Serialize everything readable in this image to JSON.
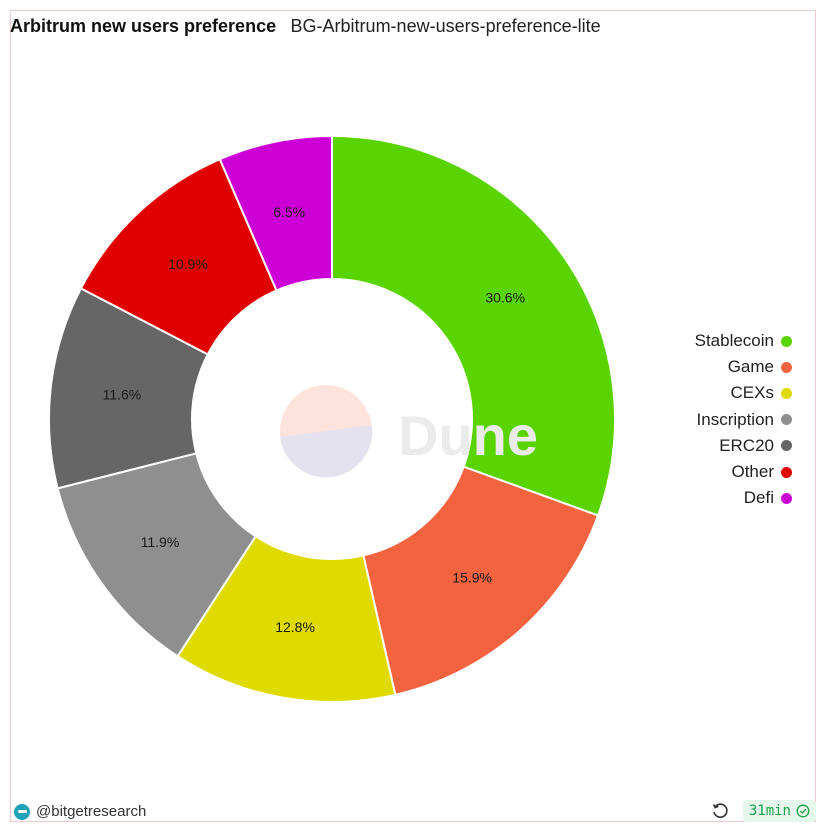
{
  "header": {
    "title": "Arbitrum new users preference",
    "subtitle": "BG-Arbitrum-new-users-preference-lite"
  },
  "watermark": {
    "text": "Dune"
  },
  "footer": {
    "author": "@bitgetresearch",
    "refresh_age": "31min",
    "icons": {
      "brand": "bitget-logo-icon",
      "refresh": "refresh-icon",
      "status": "check-circle-icon"
    }
  },
  "chart_data": {
    "type": "pie",
    "style": "donut",
    "title": "Arbitrum new users preference",
    "categories": [
      "Stablecoin",
      "Game",
      "CEXs",
      "Inscription",
      "ERC20",
      "Other",
      "Defi"
    ],
    "values": [
      30.6,
      15.9,
      12.8,
      11.9,
      11.6,
      10.9,
      6.5
    ],
    "labels": [
      "30.6%",
      "15.9%",
      "12.8%",
      "11.9%",
      "11.6%",
      "10.9%",
      "6.5%"
    ],
    "colors": [
      "#5ad400",
      "#f46340",
      "#dfdb00",
      "#8f8f8f",
      "#666666",
      "#e00000",
      "#cc00d6"
    ],
    "legend_position": "right"
  }
}
